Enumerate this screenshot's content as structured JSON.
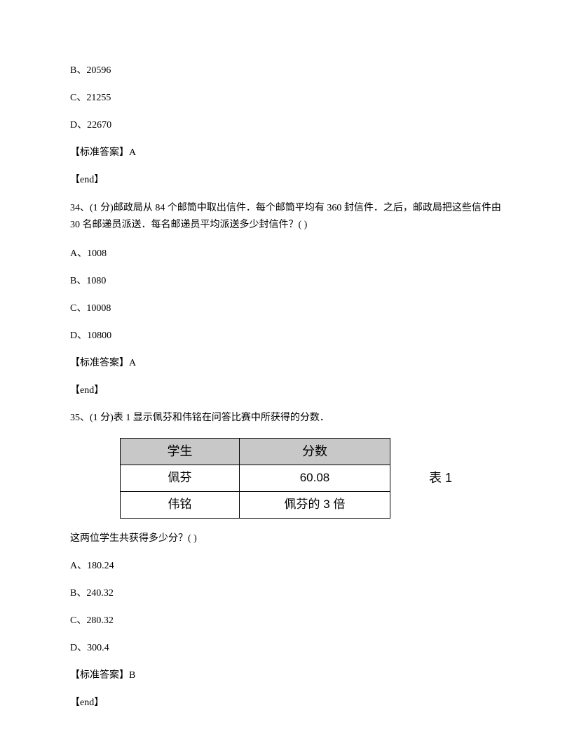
{
  "q33": {
    "optB": "B、20596",
    "optC": "C、21255",
    "optD": "D、22670",
    "answerLabel": "【标准答案】",
    "answerValue": "A",
    "end": "【end】"
  },
  "q34": {
    "stem": "34、(1 分)邮政局从 84 个邮筒中取出信件．每个邮筒平均有 360 封信件．之后，邮政局把这些信件由 30 名邮递员派送．每名邮递员平均派送多少封信件？( )",
    "optA": "A、1008",
    "optB": "B、1080",
    "optC": "C、10008",
    "optD": "D、10800",
    "answerLabel": "【标准答案】",
    "answerValue": "A",
    "end": "【end】"
  },
  "q35": {
    "stem": "35、(1 分)表 1 显示佩芬和伟铭在问答比赛中所获得的分数．",
    "table": {
      "headers": [
        "学生",
        "分数"
      ],
      "rows": [
        [
          "佩芬",
          "60.08"
        ],
        [
          "伟铭",
          "佩芬的 3 倍"
        ]
      ],
      "label": "表 1",
      "col1_width": 170,
      "col2_width": 215,
      "header_bg": "#c8c8c8",
      "border_color": "#000000"
    },
    "subq": "这两位学生共获得多少分？( )",
    "optA": "A、180.24",
    "optB": "B、240.32",
    "optC": "C、280.32",
    "optD": "D、300.4",
    "answerLabel": "【标准答案】",
    "answerValue": "B",
    "end": "【end】"
  }
}
